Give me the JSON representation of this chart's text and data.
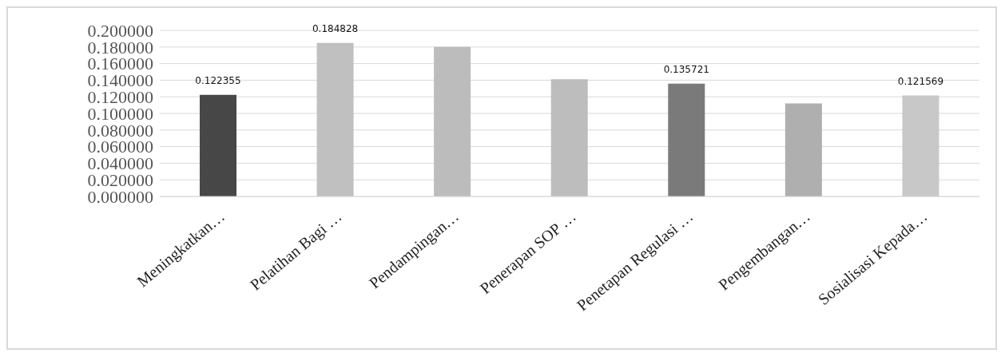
{
  "chart_data": {
    "type": "bar",
    "categories": [
      "Meningkatkan…",
      "Pelatihan Bagi …",
      "Pendampingan…",
      "Penerapan SOP …",
      "Penetapan Regulasi …",
      "Pengembangan…",
      "Sosialisasi Kepada…"
    ],
    "values": [
      0.122355,
      0.184828,
      0.18,
      0.141,
      0.135721,
      0.112,
      0.121569
    ],
    "colors": [
      "#474747",
      "#c0c0c0",
      "#bcbcbc",
      "#bdbdbd",
      "#7a7a7a",
      "#afafaf",
      "#c8c8c8"
    ],
    "value_labels": [
      "0.122355",
      "0.184828",
      null,
      null,
      "0.135721",
      null,
      "0.121569"
    ],
    "ylim": [
      0,
      0.2
    ],
    "yticks": [
      {
        "value": 0,
        "label": "0.000000"
      },
      {
        "value": 0.02,
        "label": "0.020000"
      },
      {
        "value": 0.04,
        "label": "0.040000"
      },
      {
        "value": 0.06,
        "label": "0.060000"
      },
      {
        "value": 0.08,
        "label": "0.080000"
      },
      {
        "value": 0.1,
        "label": "0.100000"
      },
      {
        "value": 0.12,
        "label": "0.120000"
      },
      {
        "value": 0.14,
        "label": "0.140000"
      },
      {
        "value": 0.16,
        "label": "0.160000"
      },
      {
        "value": 0.18,
        "label": "0.180000"
      },
      {
        "value": 0.2,
        "label": "0.200000"
      }
    ],
    "grid": "y"
  }
}
